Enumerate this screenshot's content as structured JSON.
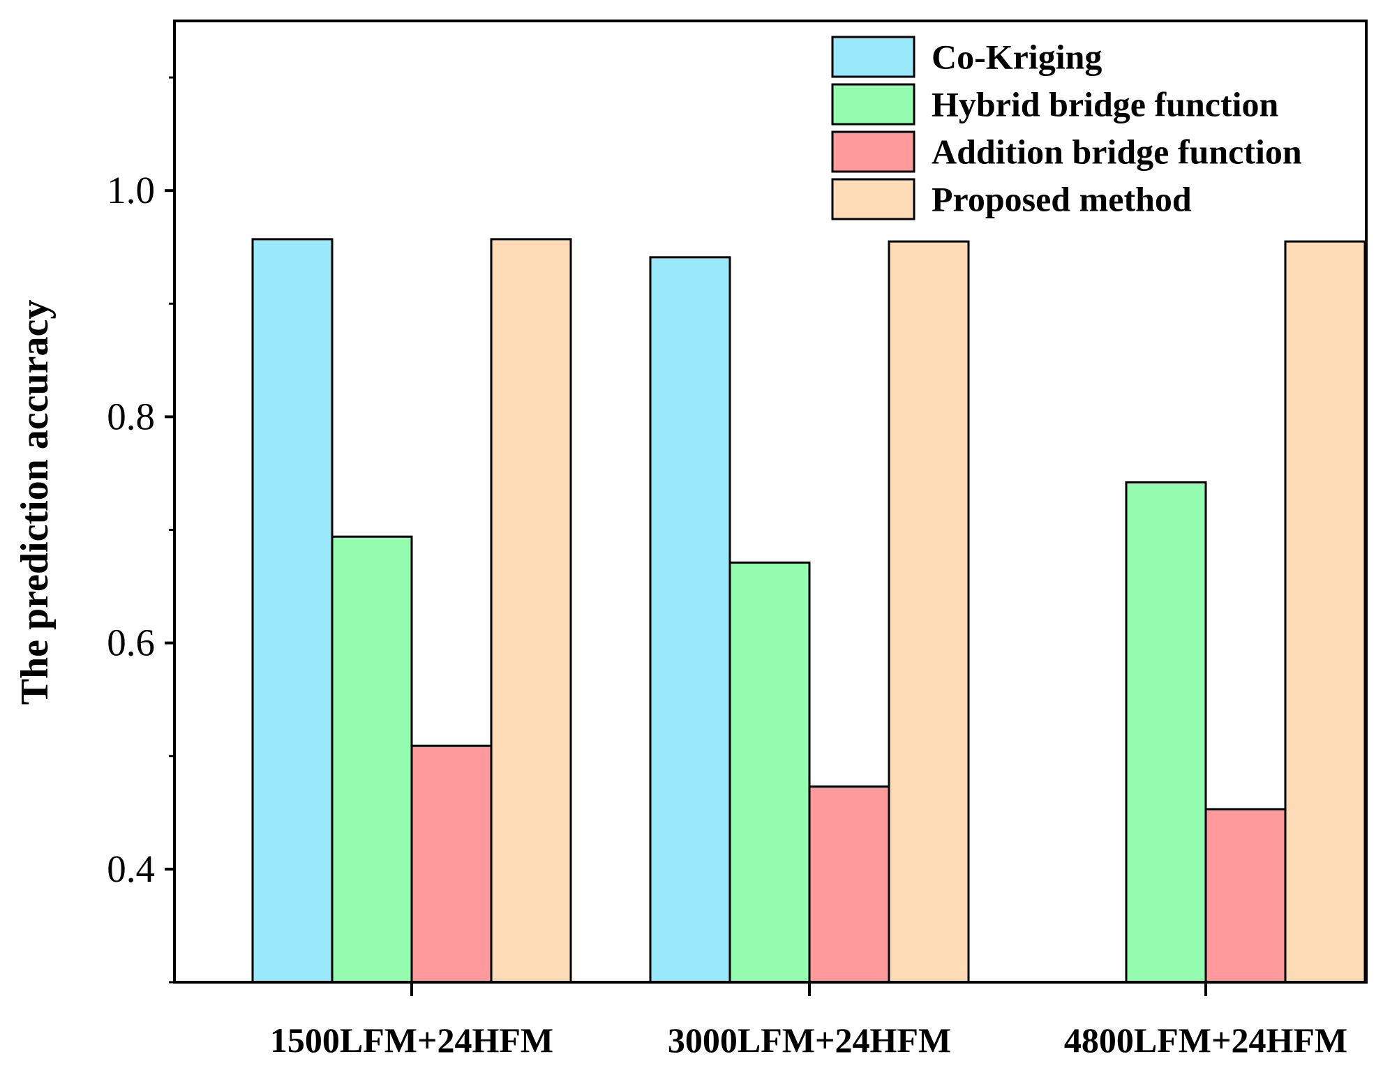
{
  "chart_data": {
    "type": "bar",
    "title": "",
    "xlabel": "",
    "ylabel": "The prediction accuracy",
    "ylim": [
      0.3,
      1.15
    ],
    "yticks": [
      0.4,
      0.6,
      0.8,
      1.0
    ],
    "ytick_labels": [
      "0.4",
      "0.6",
      "0.8",
      "1.0"
    ],
    "grid": false,
    "legend_position": "top-right",
    "categories": [
      "1500LFM+24HFM",
      "3000LFM+24HFM",
      "4800LFM+24HFM"
    ],
    "series": [
      {
        "name": "Co-Kriging",
        "color": "#99E9FB",
        "values": [
          0.957,
          0.941,
          null
        ]
      },
      {
        "name": "Hybrid bridge function",
        "color": "#94FCAF",
        "values": [
          0.694,
          0.671,
          0.742
        ]
      },
      {
        "name": "Addition bridge function",
        "color": "#FE9A9B",
        "values": [
          0.509,
          0.473,
          0.453
        ]
      },
      {
        "name": "Proposed method",
        "color": "#FEDBB7",
        "values": [
          0.957,
          0.955,
          0.955
        ]
      }
    ]
  }
}
